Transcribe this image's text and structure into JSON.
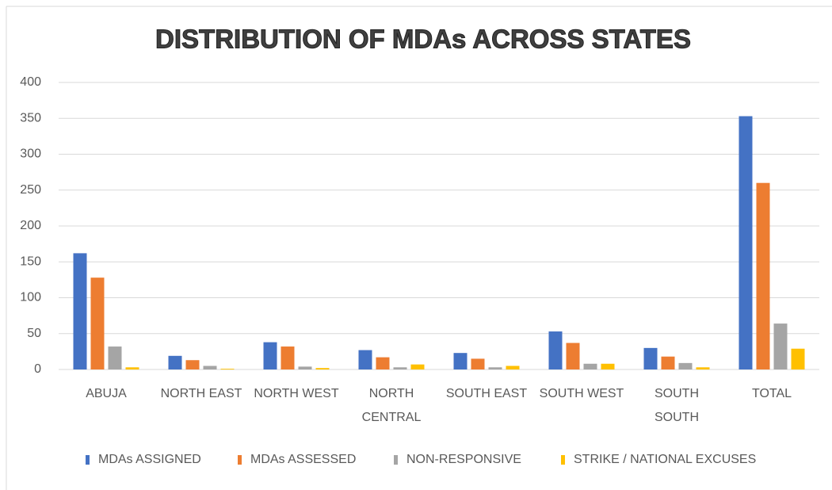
{
  "chart_data": {
    "type": "bar",
    "title": "DISTRIBUTION OF MDAs ACROSS STATES",
    "categories": [
      "ABUJA",
      "NORTH EAST",
      "NORTH WEST",
      "NORTH CENTRAL",
      "SOUTH EAST",
      "SOUTH WEST",
      "SOUTH SOUTH",
      "TOTAL"
    ],
    "series": [
      {
        "name": "MDAs ASSIGNED",
        "color": "#4472c4",
        "values": [
          162,
          19,
          38,
          27,
          23,
          53,
          30,
          353
        ]
      },
      {
        "name": "MDAs ASSESSED",
        "color": "#ed7d31",
        "values": [
          128,
          13,
          32,
          17,
          15,
          37,
          18,
          260
        ]
      },
      {
        "name": "NON-RESPONSIVE",
        "color": "#a5a5a5",
        "values": [
          32,
          5,
          4,
          3,
          3,
          8,
          9,
          64
        ]
      },
      {
        "name": "STRIKE / NATIONAL EXCUSES",
        "color": "#ffc000",
        "values": [
          3,
          1,
          2,
          7,
          5,
          8,
          3,
          29
        ]
      }
    ],
    "ylim": [
      0,
      400
    ],
    "yticks": [
      0,
      50,
      100,
      150,
      200,
      250,
      300,
      350,
      400
    ],
    "grid": true,
    "legend": "bottom"
  }
}
